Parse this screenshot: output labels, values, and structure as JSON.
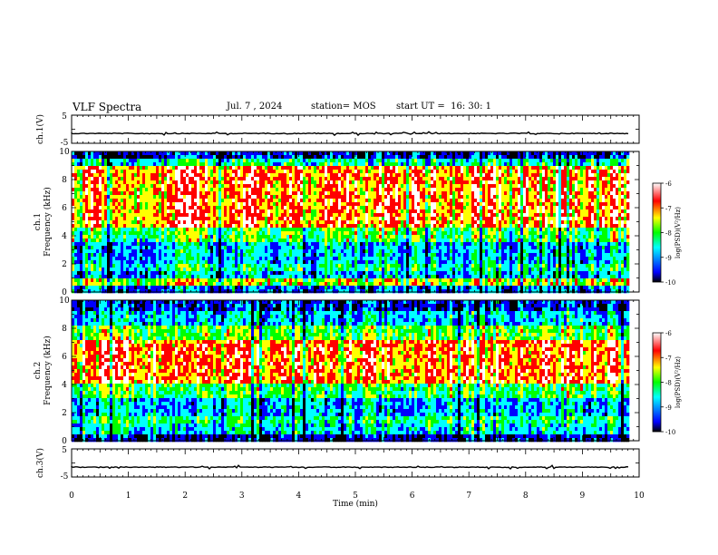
{
  "header": {
    "title": "VLF Spectra",
    "date": "Jul. 7 , 2024",
    "station": "station= MOS",
    "start": "start UT =  16: 30: 1"
  },
  "chart_data": [
    {
      "type": "line",
      "panel": "ch1-waveform",
      "ylabel": "ch.1(V)",
      "ylim": [
        -5,
        5
      ],
      "yticks": [
        "5",
        "-5"
      ],
      "level": -1.5,
      "xlim": [
        0,
        10
      ]
    },
    {
      "type": "heatmap",
      "panel": "ch1-spectrogram",
      "ylabel": [
        "ch.1",
        "Frequency (kHz)"
      ],
      "ylim": [
        0,
        10
      ],
      "yticks": [
        "0",
        "2",
        "4",
        "6",
        "8",
        "10"
      ],
      "xlim": [
        0,
        9.83
      ],
      "colorbar": {
        "label": "log(PSD)(V²/Hz)",
        "range": [
          -10,
          -6
        ],
        "ticks": [
          "-6",
          "-7",
          "-8",
          "-9",
          "-10"
        ]
      }
    },
    {
      "type": "heatmap",
      "panel": "ch2-spectrogram",
      "ylabel": [
        "ch.2",
        "Frequency (kHz)"
      ],
      "ylim": [
        0,
        10
      ],
      "yticks": [
        "0",
        "2",
        "4",
        "6",
        "8",
        "10"
      ],
      "xlim": [
        0,
        9.83
      ],
      "colorbar": {
        "label": "log(PSD)(V²/Hz)",
        "range": [
          -10,
          -6
        ],
        "ticks": [
          "-6",
          "-7",
          "-8",
          "-9",
          "-10"
        ]
      }
    },
    {
      "type": "line",
      "panel": "ch3-waveform",
      "ylabel": "ch.3(V)",
      "ylim": [
        -5,
        5
      ],
      "yticks": [
        "5",
        "-5"
      ],
      "level": -1.5,
      "xlim": [
        0,
        10
      ]
    }
  ],
  "xaxis": {
    "label": "Time (min)",
    "range": [
      0,
      10
    ],
    "ticks": [
      "0",
      "1",
      "2",
      "3",
      "4",
      "5",
      "6",
      "7",
      "8",
      "9",
      "10"
    ]
  },
  "colors": {
    "scale": [
      "#000000",
      "#0000ff",
      "#00ffff",
      "#00ff00",
      "#ffff00",
      "#ff0000",
      "#ffffff"
    ]
  }
}
